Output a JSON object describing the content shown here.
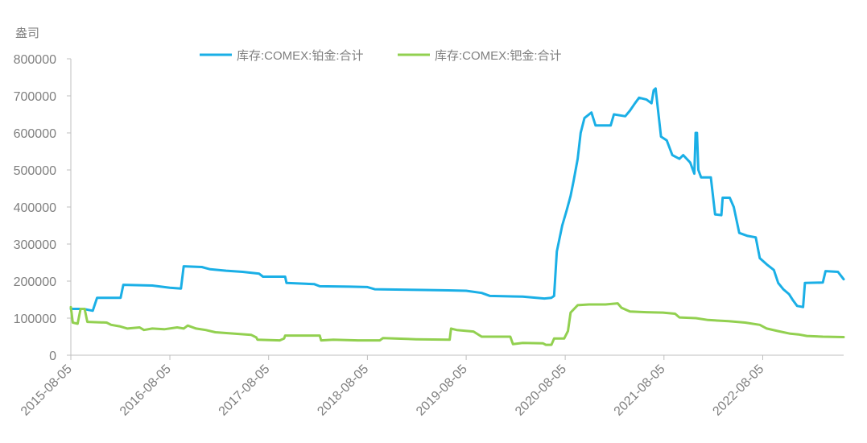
{
  "chart_data": {
    "type": "line",
    "ylabel": "盎司",
    "ylim": [
      0,
      800000
    ],
    "yticks": [
      0,
      100000,
      200000,
      300000,
      400000,
      500000,
      600000,
      700000,
      800000
    ],
    "xlim": [
      "2015-08-05",
      "2023-05-31"
    ],
    "xticks": [
      "2015-08-05",
      "2016-08-05",
      "2017-08-05",
      "2018-08-05",
      "2019-08-05",
      "2020-08-05",
      "2021-08-05",
      "2022-08-05"
    ],
    "legend_position": "top-center",
    "grid": false,
    "series": [
      {
        "name": "库存:COMEX:铂金:合计",
        "color": "#1aafe6",
        "points": [
          [
            "2015-08-05",
            125000
          ],
          [
            "2015-09-20",
            125000
          ],
          [
            "2015-10-25",
            120000
          ],
          [
            "2015-11-10",
            155000
          ],
          [
            "2016-02-05",
            155000
          ],
          [
            "2016-02-15",
            190000
          ],
          [
            "2016-06-01",
            188000
          ],
          [
            "2016-08-05",
            182000
          ],
          [
            "2016-09-15",
            180000
          ],
          [
            "2016-09-25",
            240000
          ],
          [
            "2016-12-01",
            238000
          ],
          [
            "2017-01-01",
            232000
          ],
          [
            "2017-03-01",
            228000
          ],
          [
            "2017-05-01",
            225000
          ],
          [
            "2017-07-01",
            220000
          ],
          [
            "2017-07-15",
            212000
          ],
          [
            "2017-10-05",
            212000
          ],
          [
            "2017-10-10",
            195000
          ],
          [
            "2018-01-20",
            192000
          ],
          [
            "2018-02-10",
            186000
          ],
          [
            "2018-06-01",
            185000
          ],
          [
            "2018-08-05",
            184000
          ],
          [
            "2018-09-01",
            178000
          ],
          [
            "2019-03-01",
            176000
          ],
          [
            "2019-06-01",
            175000
          ],
          [
            "2019-08-05",
            174000
          ],
          [
            "2019-10-01",
            168000
          ],
          [
            "2019-11-01",
            160000
          ],
          [
            "2020-03-01",
            158000
          ],
          [
            "2020-05-20",
            153000
          ],
          [
            "2020-06-15",
            155000
          ],
          [
            "2020-06-25",
            160000
          ],
          [
            "2020-07-05",
            280000
          ],
          [
            "2020-07-25",
            350000
          ],
          [
            "2020-08-10",
            390000
          ],
          [
            "2020-08-25",
            430000
          ],
          [
            "2020-09-05",
            470000
          ],
          [
            "2020-09-20",
            530000
          ],
          [
            "2020-10-01",
            600000
          ],
          [
            "2020-10-15",
            640000
          ],
          [
            "2020-11-10",
            655000
          ],
          [
            "2020-11-25",
            620000
          ],
          [
            "2021-01-20",
            620000
          ],
          [
            "2021-02-01",
            650000
          ],
          [
            "2021-03-15",
            645000
          ],
          [
            "2021-04-01",
            660000
          ],
          [
            "2021-04-20",
            680000
          ],
          [
            "2021-05-05",
            695000
          ],
          [
            "2021-06-01",
            690000
          ],
          [
            "2021-06-20",
            680000
          ],
          [
            "2021-06-28",
            715000
          ],
          [
            "2021-07-05",
            720000
          ],
          [
            "2021-07-25",
            590000
          ],
          [
            "2021-08-15",
            580000
          ],
          [
            "2021-09-05",
            540000
          ],
          [
            "2021-10-01",
            530000
          ],
          [
            "2021-10-15",
            540000
          ],
          [
            "2021-11-10",
            520000
          ],
          [
            "2021-11-25",
            490000
          ],
          [
            "2021-11-30",
            600000
          ],
          [
            "2021-12-05",
            600000
          ],
          [
            "2021-12-10",
            500000
          ],
          [
            "2021-12-20",
            480000
          ],
          [
            "2022-01-25",
            480000
          ],
          [
            "2022-02-10",
            380000
          ],
          [
            "2022-03-05",
            378000
          ],
          [
            "2022-03-10",
            425000
          ],
          [
            "2022-04-05",
            425000
          ],
          [
            "2022-04-20",
            400000
          ],
          [
            "2022-05-10",
            330000
          ],
          [
            "2022-06-10",
            322000
          ],
          [
            "2022-07-10",
            318000
          ],
          [
            "2022-07-25",
            262000
          ],
          [
            "2022-08-20",
            245000
          ],
          [
            "2022-09-15",
            230000
          ],
          [
            "2022-10-01",
            195000
          ],
          [
            "2022-10-20",
            178000
          ],
          [
            "2022-11-10",
            165000
          ],
          [
            "2022-11-25",
            148000
          ],
          [
            "2022-12-10",
            133000
          ],
          [
            "2023-01-01",
            130000
          ],
          [
            "2023-01-08",
            195000
          ],
          [
            "2023-03-15",
            196000
          ],
          [
            "2023-03-25",
            227000
          ],
          [
            "2023-05-10",
            225000
          ],
          [
            "2023-05-31",
            205000
          ]
        ]
      },
      {
        "name": "库存:COMEX:钯金:合计",
        "color": "#92d050",
        "points": [
          [
            "2015-08-05",
            130000
          ],
          [
            "2015-08-12",
            88000
          ],
          [
            "2015-08-30",
            85000
          ],
          [
            "2015-09-10",
            125000
          ],
          [
            "2015-09-25",
            125000
          ],
          [
            "2015-10-05",
            90000
          ],
          [
            "2015-12-15",
            88000
          ],
          [
            "2016-01-01",
            82000
          ],
          [
            "2016-02-01",
            78000
          ],
          [
            "2016-03-01",
            72000
          ],
          [
            "2016-04-15",
            75000
          ],
          [
            "2016-05-01",
            68000
          ],
          [
            "2016-06-01",
            72000
          ],
          [
            "2016-07-15",
            70000
          ],
          [
            "2016-09-01",
            75000
          ],
          [
            "2016-09-25",
            72000
          ],
          [
            "2016-10-10",
            80000
          ],
          [
            "2016-11-10",
            72000
          ],
          [
            "2016-12-15",
            68000
          ],
          [
            "2017-01-20",
            62000
          ],
          [
            "2017-04-01",
            58000
          ],
          [
            "2017-06-01",
            55000
          ],
          [
            "2017-06-20",
            48000
          ],
          [
            "2017-06-25",
            42000
          ],
          [
            "2017-09-15",
            40000
          ],
          [
            "2017-10-01",
            45000
          ],
          [
            "2017-10-05",
            53000
          ],
          [
            "2018-02-10",
            53000
          ],
          [
            "2018-02-15",
            40000
          ],
          [
            "2018-04-01",
            42000
          ],
          [
            "2018-07-01",
            40000
          ],
          [
            "2018-09-20",
            40000
          ],
          [
            "2018-10-01",
            46000
          ],
          [
            "2019-02-01",
            43000
          ],
          [
            "2019-06-05",
            42000
          ],
          [
            "2019-06-10",
            72000
          ],
          [
            "2019-07-01",
            68000
          ],
          [
            "2019-09-01",
            64000
          ],
          [
            "2019-10-01",
            50000
          ],
          [
            "2020-01-15",
            50000
          ],
          [
            "2020-01-25",
            30000
          ],
          [
            "2020-03-01",
            33000
          ],
          [
            "2020-05-15",
            32000
          ],
          [
            "2020-05-25",
            28000
          ],
          [
            "2020-06-15",
            28000
          ],
          [
            "2020-06-25",
            45000
          ],
          [
            "2020-08-01",
            45000
          ],
          [
            "2020-08-15",
            65000
          ],
          [
            "2020-08-25",
            115000
          ],
          [
            "2020-09-20",
            135000
          ],
          [
            "2020-11-01",
            137000
          ],
          [
            "2021-01-01",
            137000
          ],
          [
            "2021-02-15",
            140000
          ],
          [
            "2021-03-01",
            128000
          ],
          [
            "2021-04-01",
            118000
          ],
          [
            "2021-06-01",
            116000
          ],
          [
            "2021-08-01",
            115000
          ],
          [
            "2021-09-15",
            112000
          ],
          [
            "2021-10-01",
            102000
          ],
          [
            "2021-12-01",
            100000
          ],
          [
            "2022-01-15",
            95000
          ],
          [
            "2022-04-01",
            92000
          ],
          [
            "2022-06-01",
            88000
          ],
          [
            "2022-07-25",
            82000
          ],
          [
            "2022-08-20",
            72000
          ],
          [
            "2022-10-01",
            65000
          ],
          [
            "2022-11-15",
            58000
          ],
          [
            "2022-12-15",
            56000
          ],
          [
            "2023-01-15",
            52000
          ],
          [
            "2023-03-15",
            50000
          ],
          [
            "2023-05-31",
            49000
          ]
        ]
      }
    ]
  }
}
